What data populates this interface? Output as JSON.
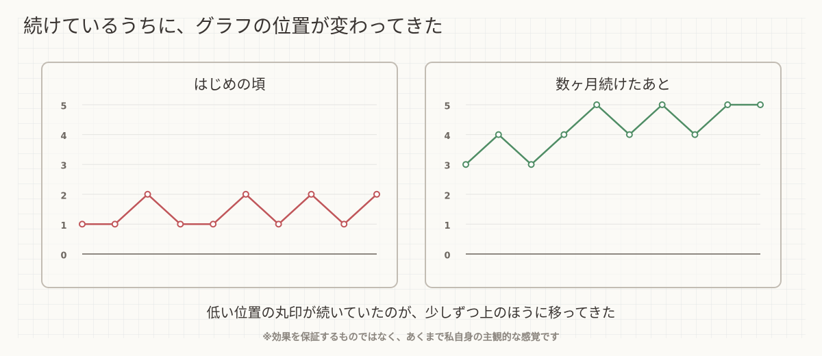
{
  "title": "続けているうちに、グラフの位置が変わってきた",
  "chart_data": [
    {
      "type": "line",
      "title": "はじめの頃",
      "categories": [
        null,
        null,
        null,
        null,
        null,
        null,
        null,
        null,
        null,
        null
      ],
      "values": [
        1,
        1,
        2,
        1,
        1,
        2,
        1,
        2,
        1,
        2
      ],
      "color": "#c0565a",
      "ylim": [
        0,
        5
      ],
      "yticks": [
        0,
        1,
        2,
        3,
        4,
        5
      ],
      "grid": true
    },
    {
      "type": "line",
      "title": "数ヶ月続けたあと",
      "categories": [
        null,
        null,
        null,
        null,
        null,
        null,
        null,
        null,
        null,
        null
      ],
      "values": [
        3,
        4,
        3,
        4,
        5,
        4,
        5,
        4,
        5,
        5
      ],
      "color": "#4f8d65",
      "ylim": [
        0,
        5
      ],
      "yticks": [
        0,
        1,
        2,
        3,
        4,
        5
      ],
      "grid": true
    }
  ],
  "caption": "低い位置の丸印が続いていたのが、少しずつ上のほうに移ってきた",
  "note": "※効果を保証するものではなく、あくまで私自身の主観的な感覚です"
}
